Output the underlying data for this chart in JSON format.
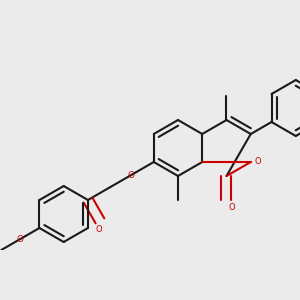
{
  "bg": "#ebebeb",
  "bc": "#1a1a1a",
  "oc": "#cc0000",
  "lw": 1.5,
  "dbg": 0.05,
  "figsize": [
    3.0,
    3.0
  ],
  "dpi": 100,
  "xlim": [
    0.0,
    3.0
  ],
  "ylim": [
    0.6,
    2.6
  ],
  "bl": 0.28
}
